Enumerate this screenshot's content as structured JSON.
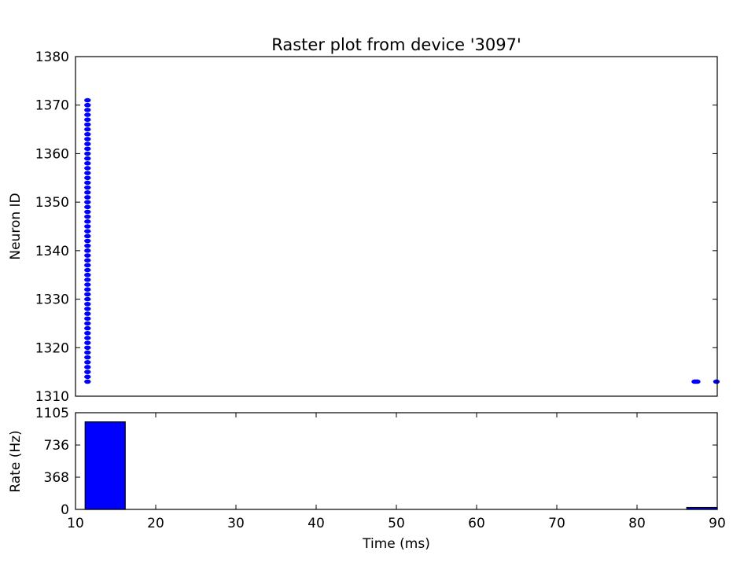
{
  "chart_data": [
    {
      "type": "scatter",
      "title": "Raster plot from device '3097'",
      "xlabel": "",
      "ylabel": "Neuron ID",
      "xlim": [
        10,
        90
      ],
      "ylim": [
        1310,
        1380
      ],
      "yticks": [
        1310,
        1320,
        1330,
        1340,
        1350,
        1360,
        1370,
        1380
      ],
      "xticks_visible": false,
      "grid": false,
      "marker_color": "#0000ff",
      "series": [
        {
          "x_first_burst": 11.5,
          "neuron_id_first": 1313,
          "neuron_id_last": 1371,
          "late_spikes": [
            {
              "x": 87.2,
              "y": 1313
            },
            {
              "x": 87.5,
              "y": 1313
            },
            {
              "x": 89.9,
              "y": 1313
            }
          ]
        }
      ]
    },
    {
      "type": "bar",
      "title": "",
      "xlabel": "Time (ms)",
      "ylabel": "Rate (Hz)",
      "xlim": [
        10,
        90
      ],
      "ylim": [
        0,
        1105
      ],
      "xticks": [
        10,
        20,
        30,
        40,
        50,
        60,
        70,
        80,
        90
      ],
      "yticks": [
        0,
        368,
        736,
        1105
      ],
      "bar_color": "#0000ff",
      "bins": [
        {
          "start": 11.2,
          "end": 16.2,
          "value": 1000
        },
        {
          "start": 86.2,
          "end": 90,
          "value": 22
        }
      ]
    }
  ]
}
